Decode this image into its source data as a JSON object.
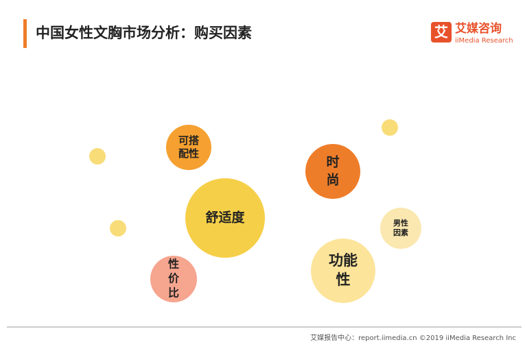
{
  "header": {
    "title": "中国女性文胸市场分析：购买因素",
    "logo_icon": "艾",
    "logo_name": "艾媒咨询",
    "logo_sub": "iiMedia Research"
  },
  "nodes": [
    {
      "lines": [
        "可搭",
        "配性"
      ]
    },
    {
      "lines": [
        "时",
        "尚"
      ]
    },
    {
      "lines": [
        "舒适度"
      ]
    },
    {
      "lines": [
        "男性",
        "因素"
      ]
    },
    {
      "lines": [
        "功能",
        "性"
      ]
    },
    {
      "lines": [
        "性",
        "价",
        "比"
      ]
    }
  ],
  "footer": {
    "text": "艾媒报告中心：report.iimedia.cn  ©2019  iiMedia Research  Inc"
  }
}
